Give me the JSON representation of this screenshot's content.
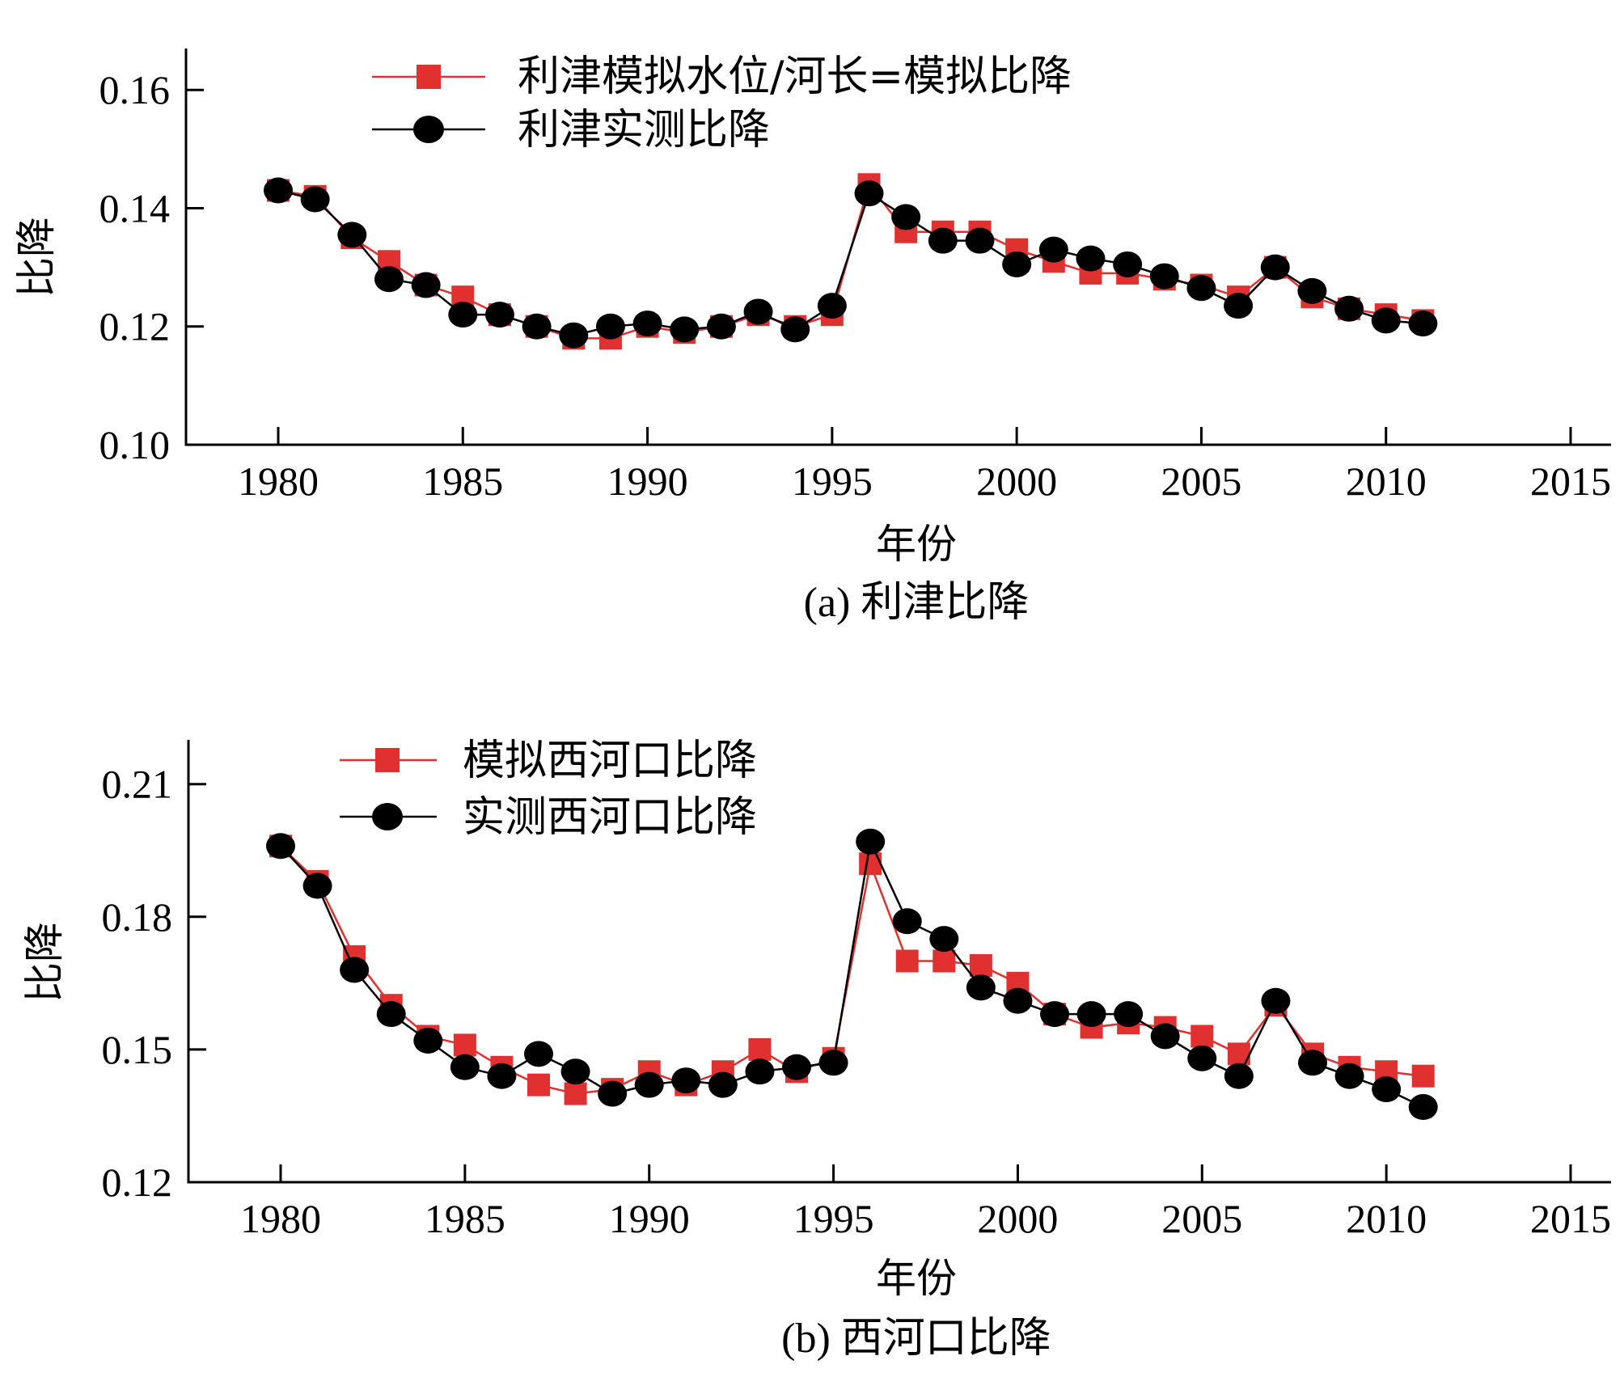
{
  "colors": {
    "simulated": "#e03030",
    "observed": "#000000"
  },
  "chart_data": [
    {
      "type": "line",
      "panel": "(a)",
      "caption": "(a) 利津比降",
      "xlabel": "年份",
      "ylabel": "比降",
      "xlim": [
        1980,
        2015
      ],
      "ylim": [
        0.1,
        0.167
      ],
      "xticks": [
        1980,
        1985,
        1990,
        1995,
        2000,
        2005,
        2010,
        2015
      ],
      "yticks": [
        0.1,
        0.12,
        0.14,
        0.16
      ],
      "ytick_labels": [
        "0.10",
        "0.12",
        "0.14",
        "0.16"
      ],
      "legend_position": "top-left",
      "grid": false,
      "x": [
        1980,
        1981,
        1982,
        1983,
        1984,
        1985,
        1986,
        1987,
        1988,
        1989,
        1990,
        1991,
        1992,
        1993,
        1994,
        1995,
        1996,
        1997,
        1998,
        1999,
        2000,
        2001,
        2002,
        2003,
        2004,
        2005,
        2006,
        2007,
        2008,
        2009,
        2010,
        2011
      ],
      "series": [
        {
          "name": "利津模拟水位/河长=模拟比降",
          "marker": "square",
          "color": "#e03030",
          "values": [
            0.143,
            0.142,
            0.135,
            0.131,
            0.127,
            0.125,
            0.122,
            0.12,
            0.118,
            0.118,
            0.12,
            0.119,
            0.12,
            0.122,
            0.12,
            0.122,
            0.144,
            0.136,
            0.136,
            0.136,
            0.133,
            0.131,
            0.129,
            0.129,
            0.128,
            0.127,
            0.125,
            0.13,
            0.125,
            0.123,
            0.122,
            0.121
          ]
        },
        {
          "name": "利津实测比降",
          "marker": "circle",
          "color": "#000000",
          "values": [
            0.143,
            0.1415,
            0.1355,
            0.128,
            0.127,
            0.122,
            0.122,
            0.12,
            0.1185,
            0.12,
            0.1205,
            0.1195,
            0.12,
            0.1225,
            0.1195,
            0.1235,
            0.1425,
            0.1385,
            0.1345,
            0.1345,
            0.1305,
            0.133,
            0.1315,
            0.1305,
            0.1285,
            0.1265,
            0.1235,
            0.13,
            0.126,
            0.123,
            0.121,
            0.1205
          ]
        }
      ]
    },
    {
      "type": "line",
      "panel": "(b)",
      "caption": "(b) 西河口比降",
      "xlabel": "年份",
      "ylabel": "比降",
      "xlim": [
        1980,
        2015
      ],
      "ylim": [
        0.12,
        0.22
      ],
      "xticks": [
        1980,
        1985,
        1990,
        1995,
        2000,
        2005,
        2010,
        2015
      ],
      "yticks": [
        0.12,
        0.15,
        0.18,
        0.21
      ],
      "ytick_labels": [
        "0.12",
        "0.15",
        "0.18",
        "0.21"
      ],
      "legend_position": "top-left",
      "grid": false,
      "x": [
        1980,
        1981,
        1982,
        1983,
        1984,
        1985,
        1986,
        1987,
        1988,
        1989,
        1990,
        1991,
        1992,
        1993,
        1994,
        1995,
        1996,
        1997,
        1998,
        1999,
        2000,
        2001,
        2002,
        2003,
        2004,
        2005,
        2006,
        2007,
        2008,
        2009,
        2010,
        2011
      ],
      "series": [
        {
          "name": "模拟西河口比降",
          "marker": "square",
          "color": "#e03030",
          "values": [
            0.196,
            0.188,
            0.171,
            0.16,
            0.153,
            0.151,
            0.146,
            0.142,
            0.14,
            0.141,
            0.145,
            0.142,
            0.145,
            0.15,
            0.145,
            0.148,
            0.192,
            0.17,
            0.17,
            0.169,
            0.165,
            0.158,
            0.155,
            0.156,
            0.155,
            0.153,
            0.149,
            0.16,
            0.149,
            0.146,
            0.145,
            0.144
          ]
        },
        {
          "name": "实测西河口比降",
          "marker": "circle",
          "color": "#000000",
          "values": [
            0.196,
            0.187,
            0.168,
            0.158,
            0.152,
            0.146,
            0.144,
            0.149,
            0.145,
            0.14,
            0.142,
            0.143,
            0.142,
            0.145,
            0.146,
            0.147,
            0.197,
            0.179,
            0.175,
            0.164,
            0.161,
            0.158,
            0.158,
            0.158,
            0.153,
            0.148,
            0.144,
            0.161,
            0.147,
            0.144,
            0.141,
            0.137
          ]
        }
      ]
    }
  ]
}
